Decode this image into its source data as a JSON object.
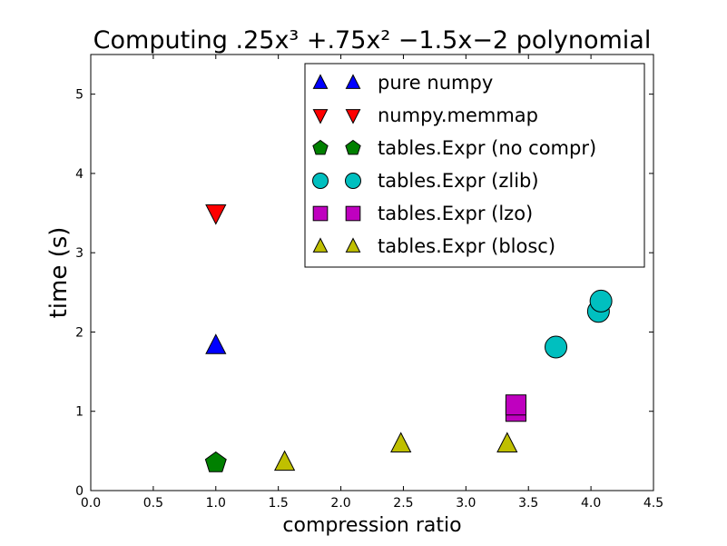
{
  "chart_data": {
    "type": "scatter",
    "title": "Computing .25x³ +.75x² −1.5x−2 polynomial",
    "xlabel": "compression ratio",
    "ylabel": "time (s)",
    "xlim": [
      0.0,
      4.5
    ],
    "ylim": [
      0,
      5.5
    ],
    "xticks": [
      "0.0",
      "0.5",
      "1.0",
      "1.5",
      "2.0",
      "2.5",
      "3.0",
      "3.5",
      "4.0",
      "4.5"
    ],
    "yticks": [
      "0",
      "1",
      "2",
      "3",
      "4",
      "5"
    ],
    "grid": false,
    "legend_position": "top-right",
    "series": [
      {
        "name": "pure numpy",
        "marker": "triangle-up",
        "color": "#0000ff",
        "points": [
          {
            "x": 1.0,
            "y": 1.83
          }
        ]
      },
      {
        "name": "numpy.memmap",
        "marker": "triangle-down",
        "color": "#ff0000",
        "points": [
          {
            "x": 1.0,
            "y": 3.5
          }
        ]
      },
      {
        "name": "tables.Expr (no compr)",
        "marker": "pentagon",
        "color": "#008000",
        "points": [
          {
            "x": 1.0,
            "y": 0.35
          }
        ]
      },
      {
        "name": "tables.Expr (zlib)",
        "marker": "circle",
        "color": "#00bfbf",
        "points": [
          {
            "x": 3.72,
            "y": 1.81
          },
          {
            "x": 4.06,
            "y": 2.26
          },
          {
            "x": 4.08,
            "y": 2.39
          }
        ]
      },
      {
        "name": "tables.Expr (lzo)",
        "marker": "square",
        "color": "#bf00bf",
        "points": [
          {
            "x": 3.4,
            "y": 1.0
          },
          {
            "x": 3.4,
            "y": 1.08
          }
        ]
      },
      {
        "name": "tables.Expr (blosc)",
        "marker": "triangle-up",
        "color": "#bfbf00",
        "points": [
          {
            "x": 1.55,
            "y": 0.36
          },
          {
            "x": 2.48,
            "y": 0.59
          },
          {
            "x": 3.33,
            "y": 0.59
          }
        ]
      }
    ]
  }
}
